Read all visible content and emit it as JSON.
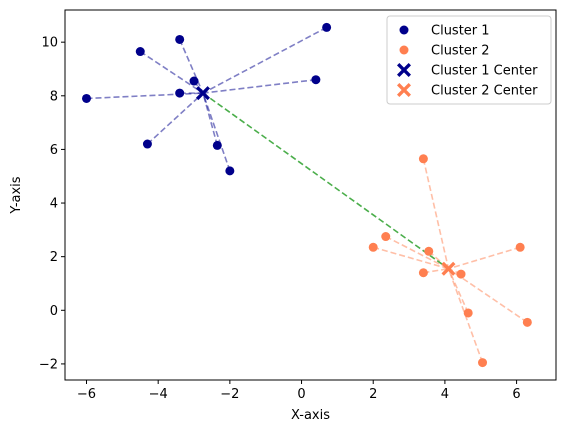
{
  "chart_data": {
    "type": "scatter",
    "xlabel": "X-axis",
    "ylabel": "Y-axis",
    "xlim": [
      -6.6,
      7.1
    ],
    "ylim": [
      -2.6,
      11.2
    ],
    "xticks": [
      -6,
      -4,
      -2,
      0,
      2,
      4,
      6
    ],
    "yticks": [
      -2,
      0,
      2,
      4,
      6,
      8,
      10
    ],
    "grid": false,
    "legend_position": "upper right",
    "series": [
      {
        "name": "Cluster 1",
        "color": "#00008b",
        "marker": "circle",
        "points": [
          [
            -6.0,
            7.9
          ],
          [
            -4.5,
            9.65
          ],
          [
            -3.4,
            10.1
          ],
          [
            -3.4,
            8.1
          ],
          [
            -3.0,
            8.55
          ],
          [
            -4.3,
            6.2
          ],
          [
            -2.35,
            6.15
          ],
          [
            -2.0,
            5.2
          ],
          [
            0.4,
            8.6
          ],
          [
            0.7,
            10.55
          ]
        ]
      },
      {
        "name": "Cluster 2",
        "color": "#ff7f50",
        "marker": "circle",
        "points": [
          [
            2.0,
            2.35
          ],
          [
            2.35,
            2.75
          ],
          [
            3.4,
            5.65
          ],
          [
            3.55,
            2.2
          ],
          [
            3.4,
            1.4
          ],
          [
            4.45,
            1.35
          ],
          [
            4.65,
            -0.1
          ],
          [
            5.05,
            -1.95
          ],
          [
            6.1,
            2.35
          ],
          [
            6.3,
            -0.45
          ]
        ]
      }
    ],
    "centers": [
      {
        "name": "Cluster 1 Center",
        "x": -2.75,
        "y": 8.1,
        "color": "#00008b",
        "marker": "X"
      },
      {
        "name": "Cluster 2 Center",
        "x": 4.1,
        "y": 1.55,
        "color": "#ff7f50",
        "marker": "X"
      }
    ],
    "connections": {
      "cluster_line_colors": [
        "#00008b",
        "#ff7f50"
      ],
      "cluster_line_opacity": [
        0.5,
        0.5
      ],
      "center_link_color": "#2ca02c",
      "line_style": "dashed"
    },
    "legend_entries": [
      {
        "label": "Cluster 1",
        "marker": "circle",
        "color": "#00008b"
      },
      {
        "label": "Cluster 2",
        "marker": "circle",
        "color": "#ff7f50"
      },
      {
        "label": "Cluster 1 Center",
        "marker": "X",
        "color": "#00008b"
      },
      {
        "label": "Cluster 2 Center",
        "marker": "X",
        "color": "#ff7f50"
      }
    ]
  }
}
